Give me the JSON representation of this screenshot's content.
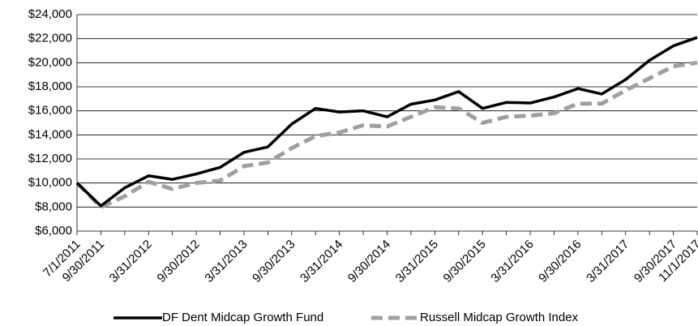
{
  "chart_data": {
    "type": "line",
    "categories": [
      "7/1/2011",
      "9/30/2011",
      null,
      "3/31/2012",
      null,
      "9/30/2012",
      null,
      "3/31/2013",
      null,
      "9/30/2013",
      null,
      "3/31/2014",
      null,
      "9/30/2014",
      null,
      "3/31/2015",
      null,
      "9/30/2015",
      null,
      "3/31/2016",
      null,
      "9/30/2016",
      null,
      "3/31/2017",
      null,
      "9/30/2017",
      "11/1/2017"
    ],
    "series": [
      {
        "name": "DF Dent Midcap Growth Fund",
        "color": "#000000",
        "values": [
          10000,
          8100,
          9600,
          10600,
          10300,
          10750,
          11300,
          12550,
          13000,
          14900,
          16200,
          15900,
          16000,
          15500,
          16550,
          16900,
          17600,
          16200,
          16700,
          16650,
          17150,
          17850,
          17400,
          18600,
          20200,
          21400,
          22100
        ]
      },
      {
        "name": "Russell Midcap Growth Index",
        "color": "#a0a0a0",
        "values": [
          10000,
          8000,
          8900,
          10100,
          9500,
          10000,
          10200,
          11400,
          11700,
          12900,
          13900,
          14200,
          14800,
          14700,
          15500,
          16300,
          16200,
          15000,
          15500,
          15600,
          15800,
          16600,
          16600,
          17700,
          18700,
          19700,
          20000
        ]
      }
    ],
    "ylim": [
      6000,
      24000
    ],
    "yticks": [
      {
        "value": 6000,
        "label": "$6,000"
      },
      {
        "value": 8000,
        "label": "$8,000"
      },
      {
        "value": 10000,
        "label": "$10,000"
      },
      {
        "value": 12000,
        "label": "$12,000"
      },
      {
        "value": 14000,
        "label": "$14,000"
      },
      {
        "value": 16000,
        "label": "$16,000"
      },
      {
        "value": 18000,
        "label": "$18,000"
      },
      {
        "value": 20000,
        "label": "$20,000"
      },
      {
        "value": 22000,
        "label": "$22,000"
      },
      {
        "value": 24000,
        "label": "$24,000"
      }
    ],
    "grid": true
  }
}
